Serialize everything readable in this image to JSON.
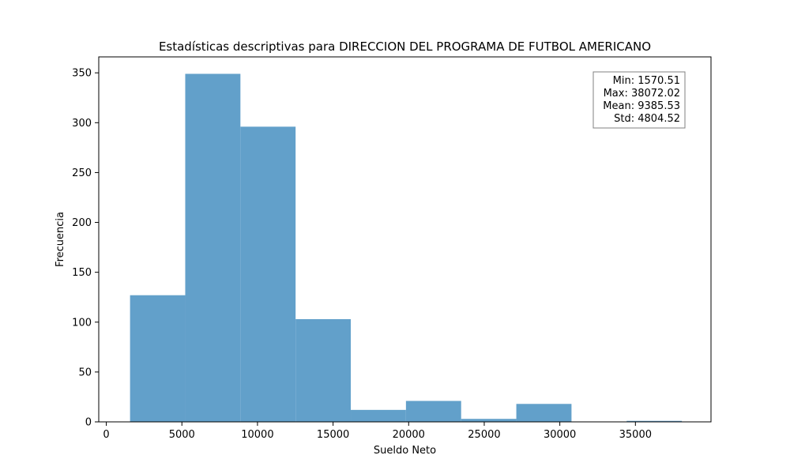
{
  "chart_data": {
    "type": "bar",
    "title": "Estadísticas descriptivas para DIRECCION DEL PROGRAMA DE FUTBOL AMERICANO",
    "xlabel": "Sueldo Neto",
    "ylabel": "Frecuencia",
    "xlim": [
      -500,
      40000
    ],
    "ylim": [
      0,
      366
    ],
    "xticks": [
      0,
      5000,
      10000,
      15000,
      20000,
      25000,
      30000,
      35000
    ],
    "yticks": [
      0,
      50,
      100,
      150,
      200,
      250,
      300,
      350
    ],
    "bins": [
      {
        "start": 1570.51,
        "end": 5220.66,
        "count": 127
      },
      {
        "start": 5220.66,
        "end": 8870.82,
        "count": 349
      },
      {
        "start": 8870.82,
        "end": 12520.97,
        "count": 296
      },
      {
        "start": 12520.97,
        "end": 16171.12,
        "count": 103
      },
      {
        "start": 16171.12,
        "end": 19821.27,
        "count": 12
      },
      {
        "start": 19821.27,
        "end": 23471.42,
        "count": 21
      },
      {
        "start": 23471.42,
        "end": 27121.57,
        "count": 3
      },
      {
        "start": 27121.57,
        "end": 30771.72,
        "count": 18
      },
      {
        "start": 30771.72,
        "end": 34421.87,
        "count": 0
      },
      {
        "start": 34421.87,
        "end": 38072.02,
        "count": 1
      }
    ],
    "bar_color": "#62a0ca",
    "grid": false,
    "stats_box": {
      "placement": "top-right",
      "lines": [
        "Min: 1570.51",
        "Max: 38072.02",
        "Mean: 9385.53",
        "Std: 4804.52"
      ]
    }
  }
}
